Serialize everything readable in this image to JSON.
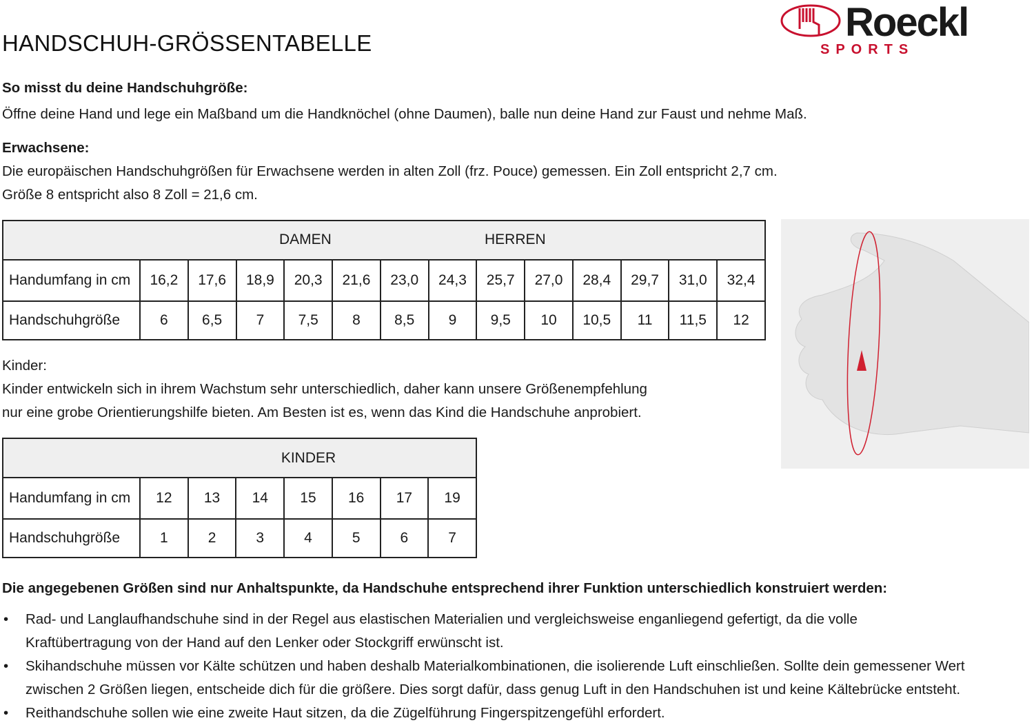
{
  "title": "HANDSCHUH-GRÖSSENTABELLE",
  "logo": {
    "brand": "Roeckl",
    "sub": "SPORTS"
  },
  "measure": {
    "heading": "So misst du deine Handschuhgröße:",
    "text": "Öffne deine Hand und lege ein Maßband um die Handknöchel (ohne Daumen), balle nun deine Hand zur Faust und nehme Maß."
  },
  "adults": {
    "heading": "Erwachsene:",
    "line1": "Die europäischen Handschuhgrößen für Erwachsene werden in alten Zoll (frz. Pouce) gemessen. Ein Zoll entspricht 2,7 cm.",
    "line2": "Größe 8 entspricht also 8 Zoll = 21,6 cm."
  },
  "adult_table": {
    "header_left": "DAMEN",
    "header_right": "HERREN",
    "row1_label": "Handumfang in cm",
    "row2_label": "Handschuhgröße",
    "cm": [
      "16,2",
      "17,6",
      "18,9",
      "20,3",
      "21,6",
      "23,0",
      "24,3",
      "25,7",
      "27,0",
      "28,4",
      "29,7",
      "31,0",
      "32,4"
    ],
    "sizes": [
      "6",
      "6,5",
      "7",
      "7,5",
      "8",
      "8,5",
      "9",
      "9,5",
      "10",
      "10,5",
      "11",
      "11,5",
      "12"
    ]
  },
  "kids": {
    "heading": "Kinder:",
    "line1": "Kinder entwickeln sich in ihrem Wachstum sehr unterschiedlich, daher kann unsere Größenempfehlung",
    "line2": "nur eine grobe Orientierungshilfe bieten. Am Besten ist es, wenn das Kind die Handschuhe anprobiert."
  },
  "kids_table": {
    "header": "KINDER",
    "row1_label": "Handumfang in cm",
    "row2_label": "Handschuhgröße",
    "cm": [
      "12",
      "13",
      "14",
      "15",
      "16",
      "17",
      "19"
    ],
    "sizes": [
      "1",
      "2",
      "3",
      "4",
      "5",
      "6",
      "7"
    ]
  },
  "notes": {
    "heading": "Die angegebenen Größen sind nur Anhaltspunkte, da Handschuhe entsprechend ihrer Funktion unterschiedlich konstruiert werden:",
    "items": [
      [
        "Rad- und Langlaufhandschuhe sind in der Regel aus elastischen Materialien und vergleichsweise enganliegend gefertigt, da die volle",
        "Kraftübertragung von der Hand auf den Lenker oder Stockgriff erwünscht ist."
      ],
      [
        "Skihandschuhe müssen vor Kälte schützen und haben deshalb Materialkombinationen, die isolierende Luft einschließen. Sollte dein gemessener Wert",
        "zwischen 2 Größen liegen, entscheide dich für die größere. Dies sorgt dafür, dass genug Luft in den Handschuhen ist und keine Kältebrücke entsteht."
      ],
      [
        "Reithandschuhe sollen wie eine zweite Haut sitzen, da die Zügelführung Fingerspitzengefühl erfordert."
      ]
    ]
  },
  "colors": {
    "brand_red": "#c8102e",
    "text": "#1a1a1a",
    "header_bg": "#efefef"
  }
}
